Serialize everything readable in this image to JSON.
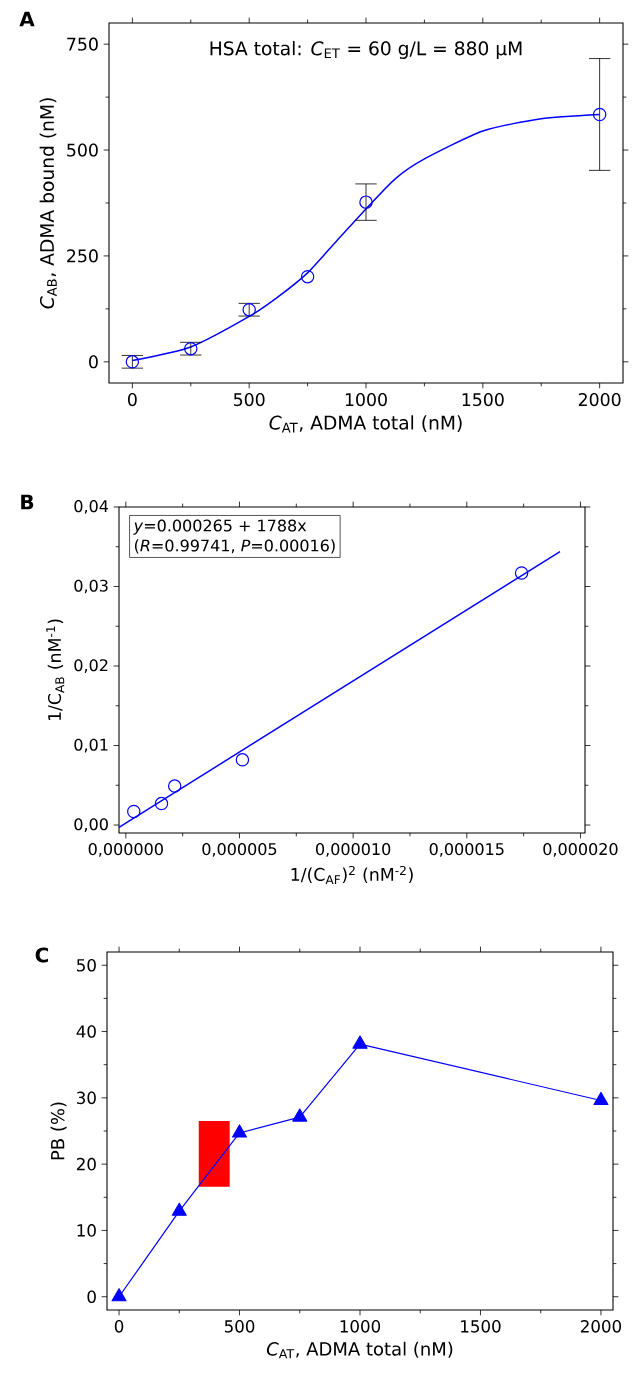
{
  "chart_data": [
    {
      "type": "scatter",
      "title": "A",
      "xlabel": "*C*$_{AT}$, ADMA total (nM)",
      "ylabel": "*C*$_{AB}$, ADMA bound (nM)",
      "annotations": [
        "HSA total: *C*$_{ET}$ = 60 g/L = 880 µM"
      ],
      "xlim": [
        -100,
        2100
      ],
      "ylim": [
        -50,
        800
      ],
      "xticks": [
        0,
        500,
        1000,
        1500,
        2000
      ],
      "yticks": [
        0,
        250,
        500,
        750
      ],
      "series": [
        {
          "type": "line",
          "color": "#0000ff",
          "marker": "none",
          "line_style": "solid",
          "x": [
            0,
            250,
            500,
            625,
            750,
            875,
            1000,
            1125,
            1250,
            1500,
            1750,
            2000
          ],
          "values": [
            3,
            35,
            107,
            154,
            210,
            286,
            361,
            432,
            479,
            545,
            574,
            584
          ]
        },
        {
          "color": "#0000ff",
          "marker": "circle",
          "x": [
            0,
            250,
            500,
            750,
            1000,
            2000
          ],
          "values": [
            0,
            31,
            123,
            201,
            377,
            584
          ],
          "errors": [
            15,
            15,
            15,
            null,
            43,
            132
          ]
        }
      ]
    },
    {
      "type": "scatter",
      "title": "B",
      "xlabel": "1/(C$_{AF}$)$^{2}$ (nM$^{-2}$)",
      "ylabel": "1/C$_{AB}$ (nM$^{-1}$)",
      "annotations": [
        "*y*=0.000265 + 1788x",
        "(*R*=0.99741, *P*=0.00016)"
      ],
      "xlim": [
        -3e-07,
        2.02e-05
      ],
      "ylim": [
        -0.001,
        0.04
      ],
      "xticks": [
        {
          "value": 0,
          "label": "0,000000"
        },
        {
          "value": 5e-06,
          "label": "0,000005"
        },
        {
          "value": 1e-05,
          "label": "0,000010"
        },
        {
          "value": 1.5e-05,
          "label": "0,000015"
        },
        {
          "value": 2e-05,
          "label": "0,000020"
        }
      ],
      "yticks": [
        {
          "value": 0,
          "label": "0,00"
        },
        {
          "value": 0.01,
          "label": "0,01"
        },
        {
          "value": 0.02,
          "label": "0,02"
        },
        {
          "value": 0.03,
          "label": "0,03"
        },
        {
          "value": 0.04,
          "label": "0,04"
        }
      ],
      "series": [
        {
          "color": "#0000ff",
          "marker": "circle",
          "x": [
            3.5e-07,
            1.57e-06,
            2.15e-06,
            5.13e-06,
            1.741e-05
          ],
          "values": [
            0.0017,
            0.0027,
            0.0049,
            0.0082,
            0.0317
          ]
        },
        {
          "type": "line",
          "color": "#0000ff",
          "marker": "none",
          "line_style": "solid",
          "x": [
            -3e-07,
            1.91e-05
          ],
          "values": [
            -0.0003,
            0.0344
          ]
        }
      ]
    },
    {
      "type": "line",
      "title": "C",
      "xlabel": "*C*$_{AT}$, ADMA total (nM)",
      "ylabel": "PB (%)",
      "xlim": [
        -50,
        2050
      ],
      "ylim": [
        -2,
        52
      ],
      "xticks": [
        0,
        500,
        1000,
        1500,
        2000
      ],
      "yticks": [
        0,
        10,
        20,
        30,
        40,
        50
      ],
      "series": [
        {
          "type": "bar",
          "color": "#ff0000",
          "x": [
            395
          ],
          "base": [
            16.6
          ],
          "values": [
            9.9
          ]
        },
        {
          "color": "#0000ff",
          "marker": "triangle",
          "line_style": "solid",
          "x": [
            0,
            250,
            500,
            750,
            1000,
            2000
          ],
          "values": [
            0,
            12.9,
            24.7,
            27.1,
            38.1,
            29.6
          ]
        }
      ]
    }
  ]
}
